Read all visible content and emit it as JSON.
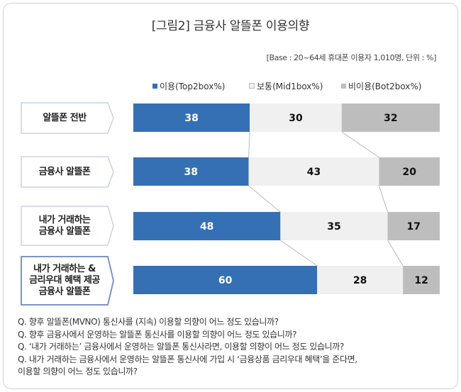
{
  "title": "[그림2] 금융사 알뜰폰 이용의향",
  "base_note": "[Base : 20~64세 휴대폰 이용자 1,010명, 단위 : %]",
  "colors": {
    "use": "#3570b4",
    "normal": "#f0f0f0",
    "nonuse": "#bdbdbd",
    "connector": "#b7b7b7",
    "label_border": "#c8d2e4",
    "label_border_strong": "#7e95c2"
  },
  "chart_data": {
    "type": "bar",
    "stacked": true,
    "orientation": "horizontal",
    "percent_scale": true,
    "legend_position": "top",
    "categories": [
      "알뜰폰 전반",
      "금융사 알뜰폰",
      "내가 거래하는\n금융사 알뜰폰",
      "내가 거래하는 &\n금리우대 혜택 제공\n금융사 알뜰폰"
    ],
    "series": [
      {
        "name": "이용(Top2box%)",
        "values": [
          38,
          38,
          48,
          60
        ]
      },
      {
        "name": "보통(Mid1box%)",
        "values": [
          30,
          43,
          35,
          28
        ]
      },
      {
        "name": "비이용(Bot2box%)",
        "values": [
          32,
          20,
          17,
          12
        ]
      }
    ]
  },
  "questions": [
    "Q. 향후 알뜰폰(MVNO) 통신사를 (지속) 이용할 의향이 어느 정도 있습니까?",
    "Q. 향후 금융사에서 운영하는 알뜰폰 통신사를 이용할 의향이 어느 정도 있습니까?",
    "Q. ‘내가 거래하는’ 금융사에서 운영하는 알뜰폰 통신사라면, 이용할 의향이 어느 정도 있습니까?",
    "Q. 내가 거래하는 금융사에서 운영하는 알뜰폰 통신사에 가입 시 ‘금융상품 금리우대 혜택’을 준다면,",
    "이용할 의향이 어느 정도 있습니까?"
  ]
}
